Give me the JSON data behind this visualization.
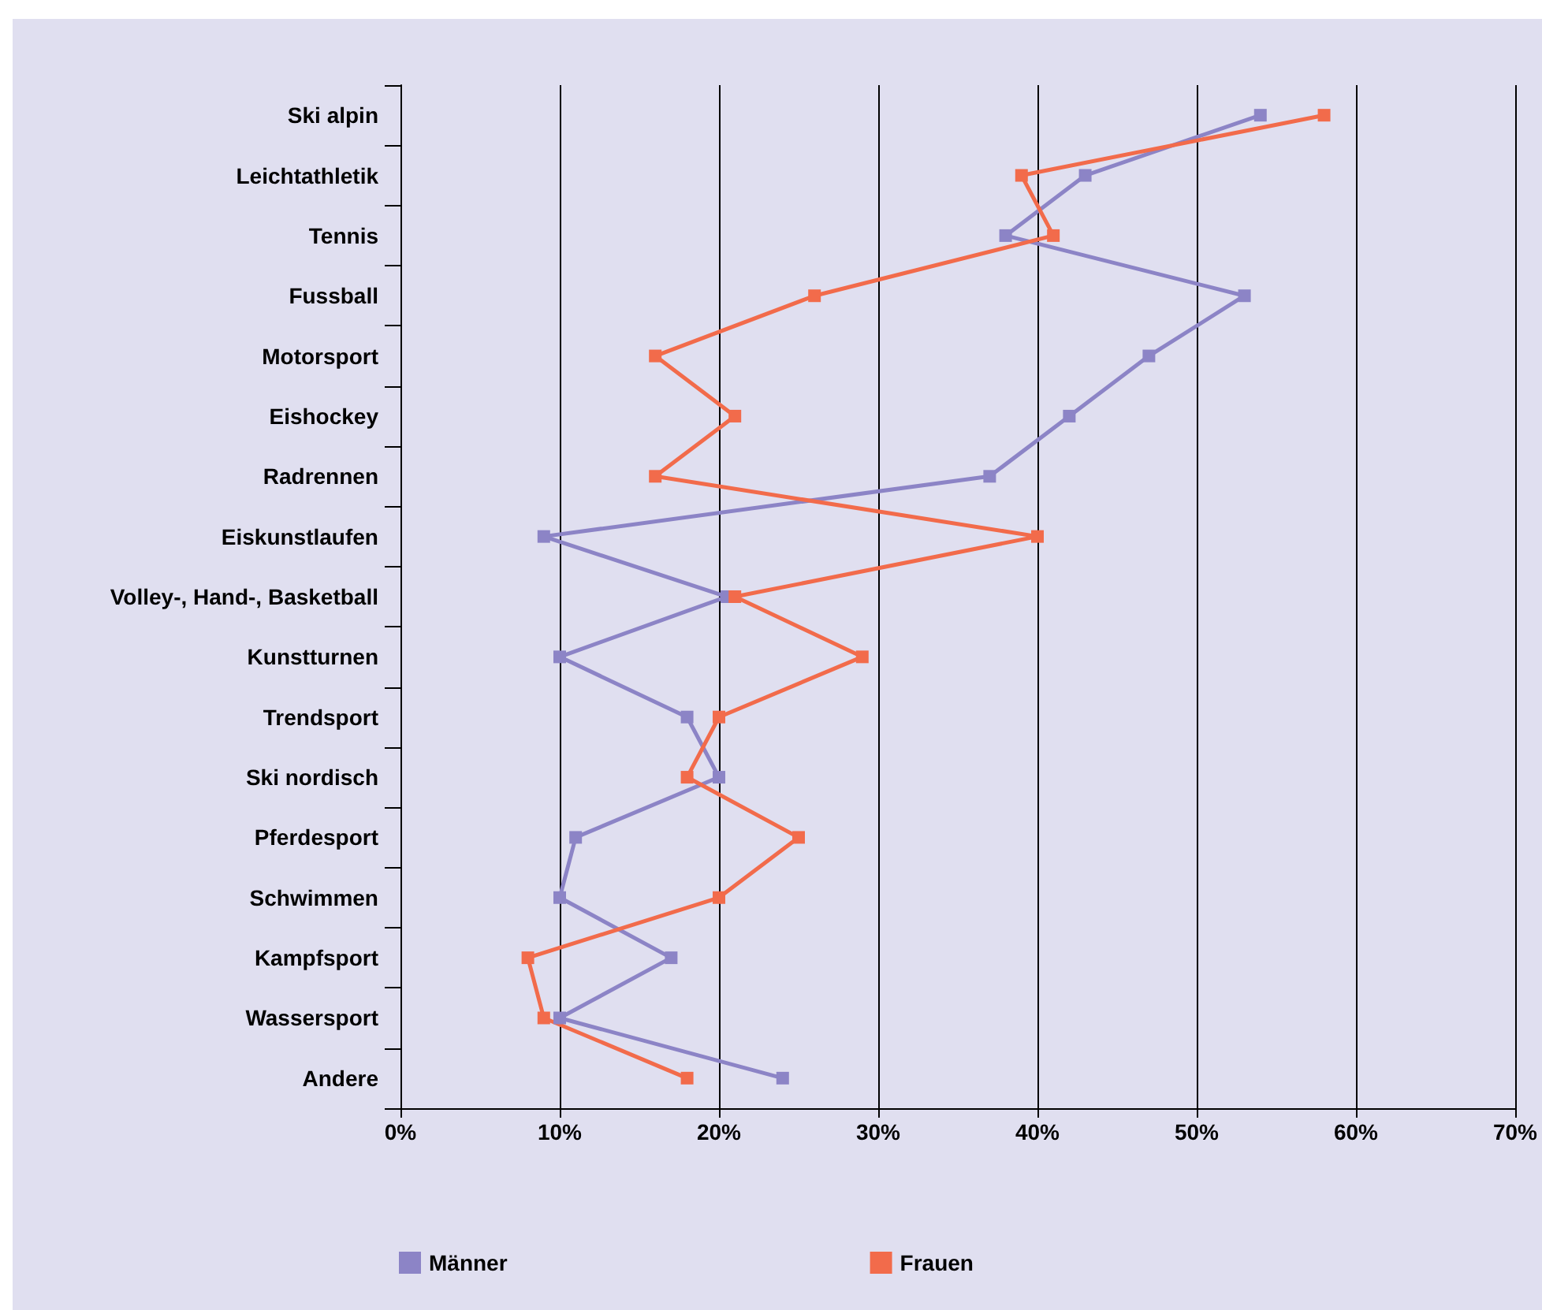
{
  "chart_data": {
    "type": "line",
    "orientation": "horizontal",
    "categories": [
      "Ski alpin",
      "Leichtathletik",
      "Tennis",
      "Fussball",
      "Motorsport",
      "Eishockey",
      "Radrennen",
      "Eiskunstlaufen",
      "Volley-, Hand-, Basketball",
      "Kunstturnen",
      "Trendsport",
      "Ski nordisch",
      "Pferdesport",
      "Schwimmen",
      "Kampfsport",
      "Wassersport",
      "Andere"
    ],
    "series": [
      {
        "name": "Männer",
        "color": "#8c84c6",
        "values": [
          54,
          43,
          38,
          53,
          47,
          42,
          37,
          9,
          20.5,
          10,
          18,
          20,
          11,
          10,
          17,
          10,
          24
        ]
      },
      {
        "name": "Frauen",
        "color": "#f26b4b",
        "values": [
          58,
          39,
          41,
          26,
          16,
          21,
          16,
          40,
          21,
          29,
          20,
          18,
          25,
          20,
          8,
          9,
          18
        ]
      }
    ],
    "xlim": [
      0,
      70
    ],
    "xticks": [
      {
        "value": 0,
        "label": "0%"
      },
      {
        "value": 10,
        "label": "10%"
      },
      {
        "value": 20,
        "label": "20%"
      },
      {
        "value": 30,
        "label": "30%"
      },
      {
        "value": 40,
        "label": "40%"
      },
      {
        "value": 50,
        "label": "50%"
      },
      {
        "value": 60,
        "label": "60%"
      },
      {
        "value": 70,
        "label": "70%"
      }
    ],
    "grid": "x",
    "legend": "bottom",
    "marker": "square",
    "line_style": "solid"
  }
}
